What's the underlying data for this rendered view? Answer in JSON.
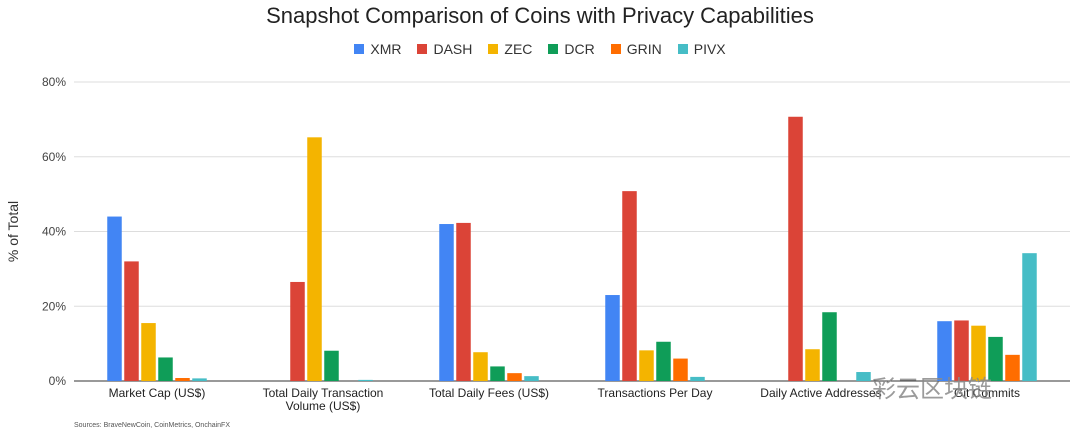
{
  "chart_data": {
    "type": "bar",
    "title": "Snapshot Comparison of Coins with Privacy Capabilities",
    "ylabel": "% of Total",
    "xlabel": "",
    "ylim": [
      0,
      80
    ],
    "yticks": [
      "0%",
      "20%",
      "40%",
      "60%",
      "80%"
    ],
    "grid": true,
    "legend_position": "top",
    "categories": [
      [
        "Market Cap (US$)"
      ],
      [
        "Total Daily Transaction",
        "Volume (US$)"
      ],
      [
        "Total Daily Fees (US$)"
      ],
      [
        "Transactions Per Day"
      ],
      [
        "Daily Active Addresses"
      ],
      [
        "Git Commits"
      ]
    ],
    "series": [
      {
        "name": "XMR",
        "color": "#4285F4",
        "values": [
          44,
          0,
          42,
          23,
          0,
          16
        ]
      },
      {
        "name": "DASH",
        "color": "#DB4437",
        "values": [
          32,
          26.5,
          42.3,
          50.8,
          70.7,
          16.2
        ]
      },
      {
        "name": "ZEC",
        "color": "#F4B400",
        "values": [
          15.5,
          65.2,
          7.7,
          8.2,
          8.5,
          14.8
        ]
      },
      {
        "name": "DCR",
        "color": "#0F9D58",
        "values": [
          6.3,
          8.1,
          3.9,
          10.5,
          18.4,
          11.8
        ]
      },
      {
        "name": "GRIN",
        "color": "#FF6D00",
        "values": [
          0.8,
          0,
          2.1,
          6,
          0,
          7
        ]
      },
      {
        "name": "PIVX",
        "color": "#46BDC6",
        "values": [
          0.7,
          0.3,
          1.3,
          1.1,
          2.4,
          34.2
        ]
      }
    ]
  },
  "source": "Sources: BraveNewCoin, CoinMetrics, OnchainFX",
  "watermark": "彩云区块链"
}
